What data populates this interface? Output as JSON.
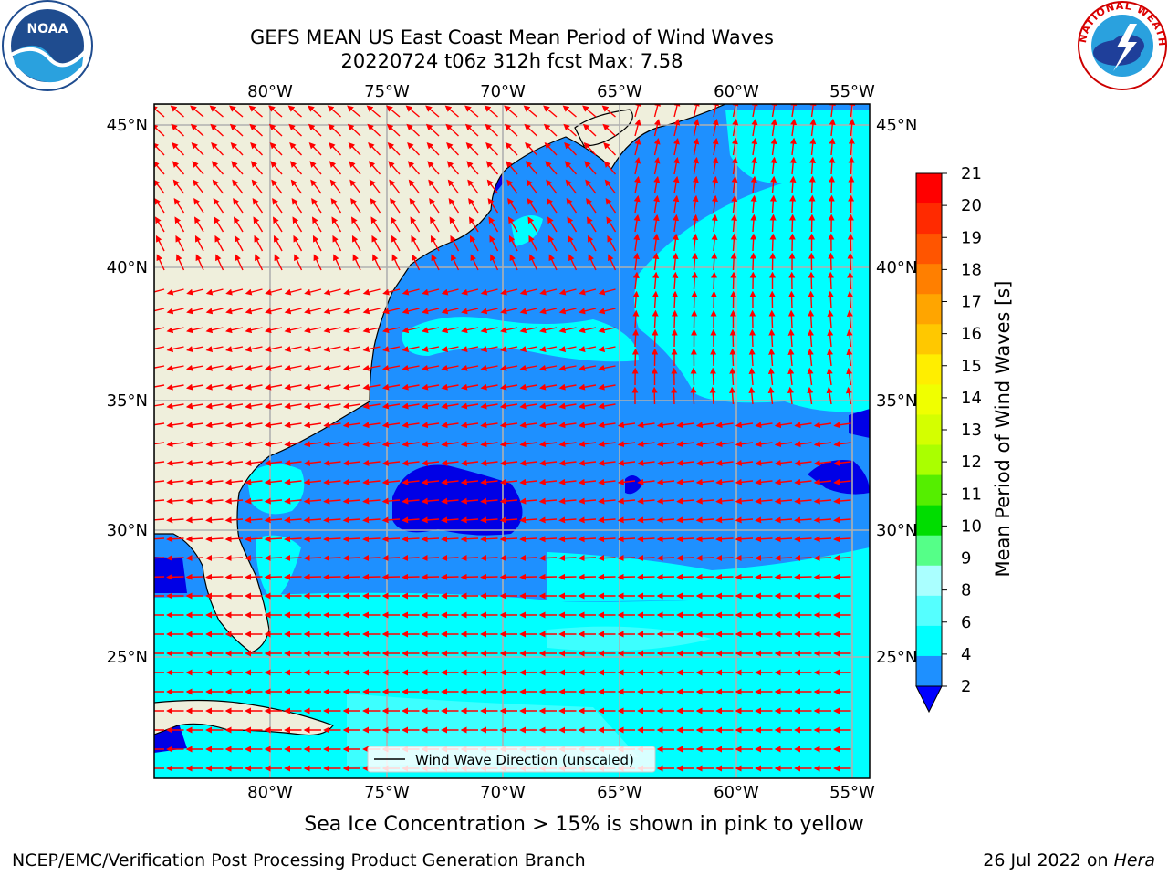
{
  "header": {
    "title_line1": "GEFS MEAN US East Coast Mean Period of Wind Waves",
    "title_line2": "20220724 t06z 312h fcst   Max: 7.58"
  },
  "map": {
    "lon_labels": [
      "80°W",
      "75°W",
      "70°W",
      "65°W",
      "60°W",
      "55°W"
    ],
    "lat_labels": [
      "45°N",
      "40°N",
      "35°N",
      "30°N",
      "25°N"
    ],
    "legend_label": "Wind Wave Direction (unscaled)",
    "colors": {
      "land": "#efefdc",
      "ocean_low": "#1e90ff",
      "ocean_mid": "#00ffff",
      "ocean_deep": "#0000e6",
      "arrow": "#ff0000",
      "grid": "#b0b0b0"
    }
  },
  "colorbar": {
    "label": "Mean Period of Wind Waves [s]",
    "ticks": [
      "21",
      "20",
      "19",
      "18",
      "17",
      "16",
      "15",
      "14",
      "13",
      "12",
      "11",
      "10",
      "9",
      "8",
      "6",
      "4",
      "2"
    ],
    "bands": [
      "#ff0000",
      "#ff2a00",
      "#ff5500",
      "#ff7f00",
      "#ffa500",
      "#ffc800",
      "#ffee00",
      "#f0ff00",
      "#d4ff00",
      "#aaff00",
      "#55ee00",
      "#00dd00",
      "#55ff88",
      "#aaffff",
      "#55ffff",
      "#00ffff",
      "#1e90ff"
    ],
    "extend_color": "#0000ff"
  },
  "footer": {
    "sea_ice_note": "Sea Ice Concentration > 15% is shown in pink to yellow",
    "credit": "NCEP/EMC/Verification Post Processing Product Generation Branch",
    "date_text": "26 Jul 2022 on ",
    "machine": "Hera"
  },
  "logos": {
    "noaa": "NOAA",
    "nws": "NATIONAL WEATHER SERVICE"
  }
}
